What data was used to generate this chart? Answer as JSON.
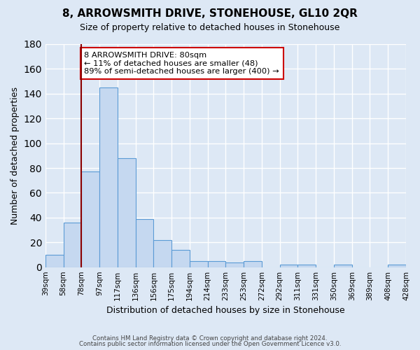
{
  "title": "8, ARROWSMITH DRIVE, STONEHOUSE, GL10 2QR",
  "subtitle": "Size of property relative to detached houses in Stonehouse",
  "xlabel": "Distribution of detached houses by size in Stonehouse",
  "ylabel": "Number of detached properties",
  "bin_edges": [
    "39sqm",
    "58sqm",
    "78sqm",
    "97sqm",
    "117sqm",
    "136sqm",
    "156sqm",
    "175sqm",
    "194sqm",
    "214sqm",
    "233sqm",
    "253sqm",
    "272sqm",
    "292sqm",
    "311sqm",
    "331sqm",
    "350sqm",
    "369sqm",
    "389sqm",
    "408sqm",
    "428sqm"
  ],
  "bin_values": [
    10,
    36,
    77,
    145,
    88,
    39,
    22,
    14,
    5,
    5,
    4,
    5,
    0,
    2,
    2,
    0,
    2,
    0,
    0,
    2
  ],
  "bar_color": "#c5d8f0",
  "bar_edge_color": "#5b9bd5",
  "vline_position": 2,
  "vline_color": "#8b0000",
  "ylim": [
    0,
    180
  ],
  "yticks": [
    0,
    20,
    40,
    60,
    80,
    100,
    120,
    140,
    160,
    180
  ],
  "annotation_text": "8 ARROWSMITH DRIVE: 80sqm\n← 11% of detached houses are smaller (48)\n89% of semi-detached houses are larger (400) →",
  "annotation_box_color": "#ffffff",
  "annotation_box_edge": "#cc0000",
  "footer1": "Contains HM Land Registry data © Crown copyright and database right 2024.",
  "footer2": "Contains public sector information licensed under the Open Government Licence v3.0.",
  "background_color": "#dde8f5",
  "grid_color": "#ffffff"
}
